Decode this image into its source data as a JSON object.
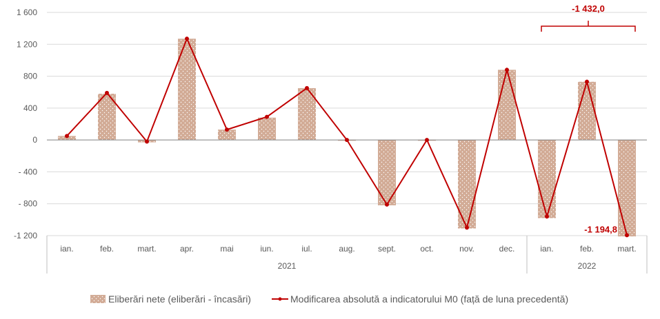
{
  "chart_data": {
    "type": "bar",
    "categories": [
      "ian.",
      "feb.",
      "mart.",
      "apr.",
      "mai",
      "iun.",
      "iul.",
      "aug.",
      "sept.",
      "oct.",
      "nov.",
      "dec.",
      "ian.",
      "feb.",
      "mart."
    ],
    "groups": [
      {
        "label": "2021",
        "count": 12
      },
      {
        "label": "2022",
        "count": 3
      }
    ],
    "series": [
      {
        "name": "Eliberări nete (eliberări - încasări)",
        "type": "bar",
        "values": [
          50,
          580,
          -30,
          1270,
          130,
          280,
          650,
          -10,
          -820,
          -10,
          -1110,
          880,
          -980,
          730,
          -1210
        ]
      },
      {
        "name": "Modificarea absolută a indicatorului M0 (față de luna precedentă)",
        "type": "line",
        "values": [
          50,
          590,
          -20,
          1270,
          130,
          290,
          650,
          0,
          -810,
          0,
          -1100,
          880,
          -960,
          730,
          -1194.8
        ]
      }
    ],
    "ylim": [
      -1200,
      1600
    ],
    "yticks": [
      -1200,
      -800,
      -400,
      0,
      400,
      800,
      1200,
      1600
    ],
    "ytick_labels": [
      "-1 200",
      "- 800",
      "- 400",
      "0",
      "400",
      "800",
      "1 200",
      "1 600"
    ],
    "annotations": {
      "brace_label": "-1 432,0",
      "point_label": "-1 194,8"
    },
    "legend_position": "bottom",
    "grid": true,
    "colors": {
      "bar_fill": "#d2ab96",
      "bar_dots": "#ffffff",
      "line": "#c00000",
      "grid": "#d9d9d9",
      "axis": "#7f7f7f",
      "text": "#595959"
    }
  }
}
